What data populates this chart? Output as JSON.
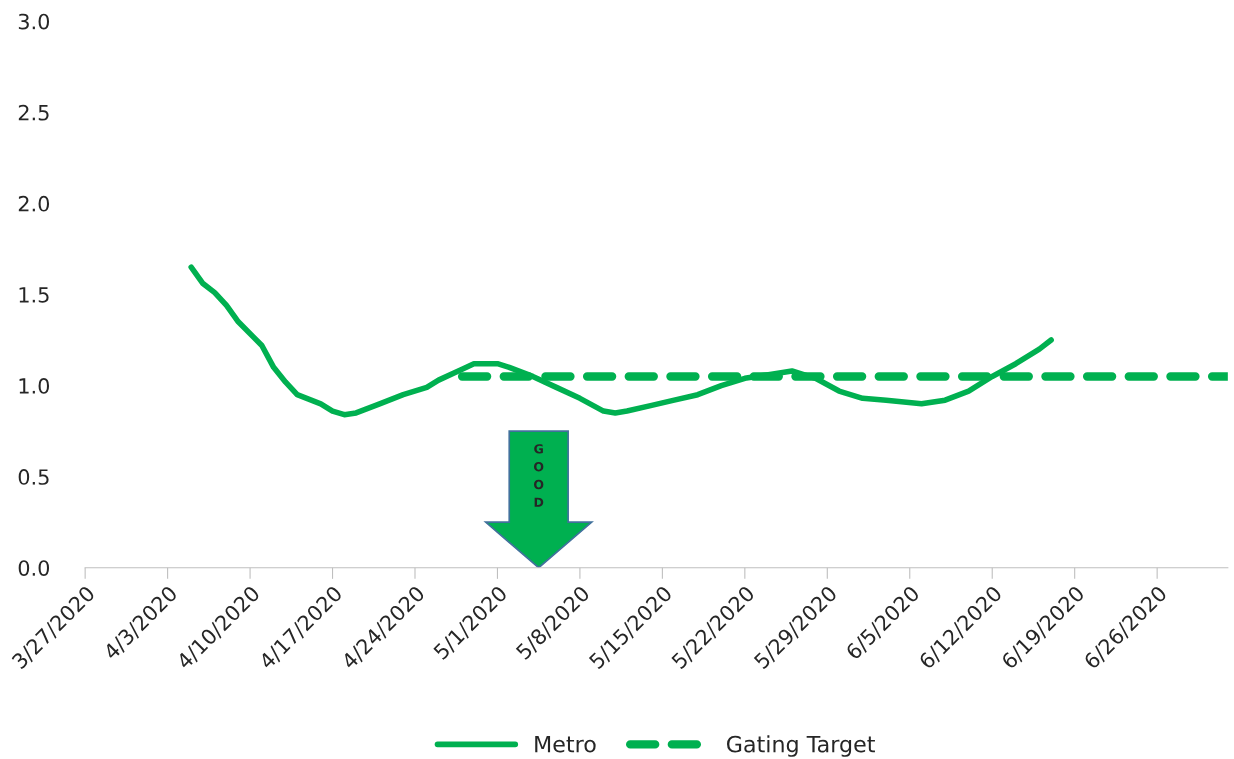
{
  "chart_data": {
    "type": "line",
    "xlim": [
      "2020-03-27",
      "2020-07-02"
    ],
    "xticks": [
      {
        "value": "2020-03-27",
        "label": "3/27/2020"
      },
      {
        "value": "2020-04-03",
        "label": "4/3/2020"
      },
      {
        "value": "2020-04-10",
        "label": "4/10/2020"
      },
      {
        "value": "2020-04-17",
        "label": "4/17/2020"
      },
      {
        "value": "2020-04-24",
        "label": "4/24/2020"
      },
      {
        "value": "2020-05-01",
        "label": "5/1/2020"
      },
      {
        "value": "2020-05-08",
        "label": "5/8/2020"
      },
      {
        "value": "2020-05-15",
        "label": "5/15/2020"
      },
      {
        "value": "2020-05-22",
        "label": "5/22/2020"
      },
      {
        "value": "2020-05-29",
        "label": "5/29/2020"
      },
      {
        "value": "2020-06-05",
        "label": "6/5/2020"
      },
      {
        "value": "2020-06-12",
        "label": "6/12/2020"
      },
      {
        "value": "2020-06-19",
        "label": "6/19/2020"
      },
      {
        "value": "2020-06-26",
        "label": "6/26/2020"
      }
    ],
    "ylim": [
      0,
      3
    ],
    "yticks": [
      {
        "value": 0,
        "label": "0.0"
      },
      {
        "value": 0.5,
        "label": "0.5"
      },
      {
        "value": 1,
        "label": "1.0"
      },
      {
        "value": 1.5,
        "label": "1.5"
      },
      {
        "value": 2,
        "label": "2.0"
      },
      {
        "value": 2.5,
        "label": "2.5"
      },
      {
        "value": 3,
        "label": "3.0"
      }
    ],
    "grid": false,
    "legend": "bottom",
    "marker": "none",
    "annotations": [
      "GOOD"
    ],
    "series": [
      {
        "name": "Metro",
        "color": "#00b050",
        "line_style": "solid",
        "x": [
          "2020-04-05",
          "2020-04-06",
          "2020-04-07",
          "2020-04-08",
          "2020-04-09",
          "2020-04-11",
          "2020-04-12",
          "2020-04-13",
          "2020-04-14",
          "2020-04-16",
          "2020-04-17",
          "2020-04-18",
          "2020-04-19",
          "2020-04-21",
          "2020-04-23",
          "2020-04-25",
          "2020-04-26",
          "2020-04-28",
          "2020-04-29",
          "2020-04-30",
          "2020-05-01",
          "2020-05-02",
          "2020-05-04",
          "2020-05-06",
          "2020-05-08",
          "2020-05-10",
          "2020-05-11",
          "2020-05-12",
          "2020-05-14",
          "2020-05-16",
          "2020-05-18",
          "2020-05-20",
          "2020-05-22",
          "2020-05-24",
          "2020-05-26",
          "2020-05-28",
          "2020-05-30",
          "2020-06-01",
          "2020-06-03",
          "2020-06-06",
          "2020-06-08",
          "2020-06-10",
          "2020-06-12",
          "2020-06-14",
          "2020-06-16",
          "2020-06-17"
        ],
        "values": [
          1.65,
          1.56,
          1.51,
          1.44,
          1.35,
          1.22,
          1.1,
          1.02,
          0.95,
          0.9,
          0.86,
          0.84,
          0.85,
          0.9,
          0.95,
          0.99,
          1.03,
          1.09,
          1.12,
          1.12,
          1.12,
          1.1,
          1.05,
          0.99,
          0.93,
          0.86,
          0.85,
          0.86,
          0.89,
          0.92,
          0.95,
          1.0,
          1.04,
          1.06,
          1.08,
          1.04,
          0.97,
          0.93,
          0.92,
          0.9,
          0.92,
          0.97,
          1.05,
          1.12,
          1.2,
          1.25
        ]
      },
      {
        "name": "Gating Target",
        "color": "#00b050",
        "line_style": "dashed",
        "x": [
          "2020-04-28",
          "2020-07-02"
        ],
        "values": [
          1.05,
          1.05
        ]
      }
    ]
  }
}
